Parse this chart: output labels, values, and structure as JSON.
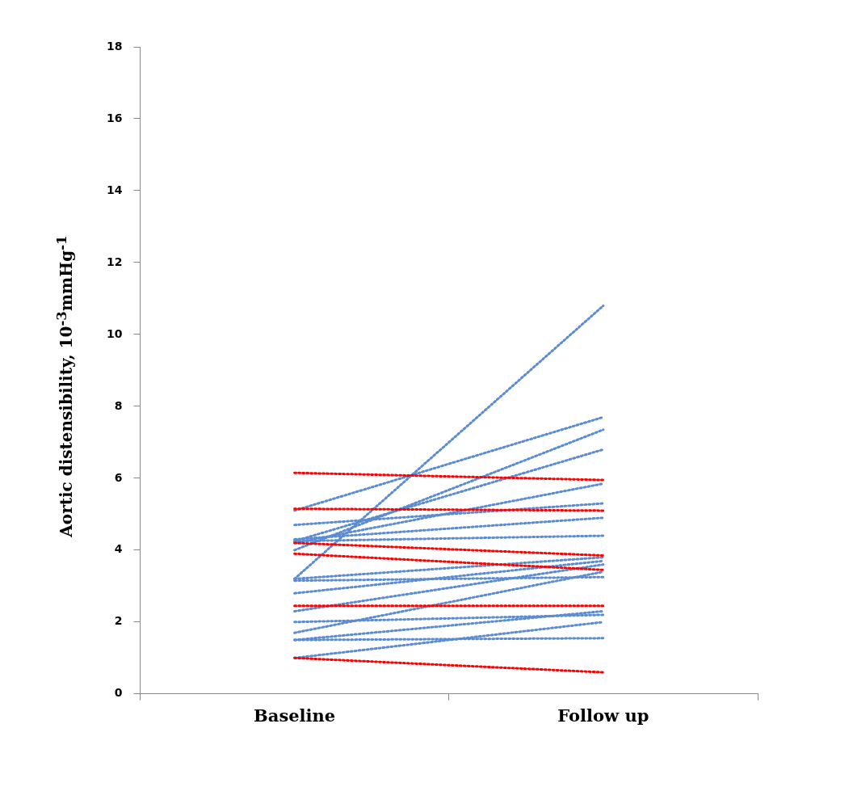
{
  "chart_data": {
    "type": "line",
    "ylabel": "Aortic distensibility, 10$^{-3}$mmHg$^{-1}$",
    "categories": [
      "Baseline",
      "Follow up"
    ],
    "ylim": [
      0,
      18
    ],
    "yticks": [
      0,
      2,
      4,
      6,
      8,
      10,
      12,
      14,
      16,
      18
    ],
    "grid": false,
    "legend": false,
    "marker": "none",
    "line_style": "dotted",
    "series": [
      {
        "color": "#ff0000",
        "values": [
          6.15,
          5.95
        ]
      },
      {
        "color": "#ff0000",
        "values": [
          5.15,
          5.1
        ]
      },
      {
        "color": "#ff0000",
        "values": [
          4.2,
          3.85
        ]
      },
      {
        "color": "#ff0000",
        "values": [
          3.9,
          3.45
        ]
      },
      {
        "color": "#ff0000",
        "values": [
          2.45,
          2.45
        ]
      },
      {
        "color": "#ff0000",
        "values": [
          1.0,
          0.6
        ]
      },
      {
        "color": "#5b8bd0",
        "values": [
          3.2,
          10.8
        ]
      },
      {
        "color": "#5b8bd0",
        "values": [
          5.1,
          7.7
        ]
      },
      {
        "color": "#5b8bd0",
        "values": [
          4.0,
          7.35
        ]
      },
      {
        "color": "#5b8bd0",
        "values": [
          4.25,
          6.8
        ]
      },
      {
        "color": "#5b8bd0",
        "values": [
          4.2,
          5.85
        ]
      },
      {
        "color": "#5b8bd0",
        "values": [
          4.7,
          5.3
        ]
      },
      {
        "color": "#5b8bd0",
        "values": [
          4.3,
          4.9
        ]
      },
      {
        "color": "#5b8bd0",
        "values": [
          4.25,
          4.4
        ]
      },
      {
        "color": "#5b8bd0",
        "values": [
          3.2,
          3.8
        ]
      },
      {
        "color": "#5b8bd0",
        "values": [
          3.15,
          3.25
        ]
      },
      {
        "color": "#5b8bd0",
        "values": [
          2.8,
          3.7
        ]
      },
      {
        "color": "#5b8bd0",
        "values": [
          2.3,
          3.6
        ]
      },
      {
        "color": "#5b8bd0",
        "values": [
          1.7,
          3.4
        ]
      },
      {
        "color": "#5b8bd0",
        "values": [
          2.0,
          2.2
        ]
      },
      {
        "color": "#5b8bd0",
        "values": [
          1.5,
          2.3
        ]
      },
      {
        "color": "#5b8bd0",
        "values": [
          1.0,
          2.0
        ]
      },
      {
        "color": "#5b8bd0",
        "values": [
          1.5,
          1.55
        ]
      }
    ]
  }
}
